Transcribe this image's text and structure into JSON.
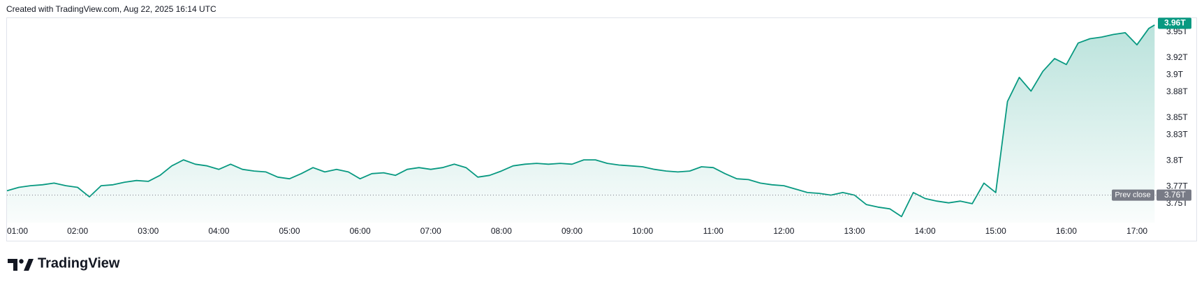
{
  "header": "Created with TradingView.com, Aug 22, 2025 16:14 UTC",
  "brand": "TradingView",
  "chart_data": {
    "type": "area",
    "color": "#089981",
    "x": [
      "01:00",
      "01:10",
      "01:20",
      "01:30",
      "01:40",
      "01:50",
      "02:00",
      "02:10",
      "02:20",
      "02:30",
      "02:40",
      "02:50",
      "03:00",
      "03:10",
      "03:20",
      "03:30",
      "03:40",
      "03:50",
      "04:00",
      "04:10",
      "04:20",
      "04:30",
      "04:40",
      "04:50",
      "05:00",
      "05:10",
      "05:20",
      "05:30",
      "05:40",
      "05:50",
      "06:00",
      "06:10",
      "06:20",
      "06:30",
      "06:40",
      "06:50",
      "07:00",
      "07:10",
      "07:20",
      "07:30",
      "07:40",
      "07:50",
      "08:00",
      "08:10",
      "08:20",
      "08:30",
      "08:40",
      "08:50",
      "09:00",
      "09:10",
      "09:20",
      "09:30",
      "09:40",
      "09:50",
      "10:00",
      "10:10",
      "10:20",
      "10:30",
      "10:40",
      "10:50",
      "11:00",
      "11:10",
      "11:20",
      "11:30",
      "11:40",
      "11:50",
      "12:00",
      "12:10",
      "12:20",
      "12:30",
      "12:40",
      "12:50",
      "13:00",
      "13:10",
      "13:20",
      "13:30",
      "13:40",
      "13:50",
      "14:00",
      "14:10",
      "14:20",
      "14:30",
      "14:40",
      "14:50",
      "15:00",
      "15:10",
      "15:20",
      "15:30",
      "15:40",
      "15:50",
      "16:00",
      "16:10",
      "16:20",
      "16:30",
      "16:40",
      "16:50",
      "17:00",
      "17:10",
      "17:15"
    ],
    "values": [
      3.765,
      3.769,
      3.771,
      3.772,
      3.774,
      3.771,
      3.769,
      3.758,
      3.771,
      3.772,
      3.775,
      3.777,
      3.776,
      3.783,
      3.794,
      3.801,
      3.796,
      3.794,
      3.79,
      3.796,
      3.79,
      3.788,
      3.787,
      3.781,
      3.779,
      3.785,
      3.792,
      3.787,
      3.79,
      3.787,
      3.779,
      3.785,
      3.786,
      3.783,
      3.79,
      3.792,
      3.79,
      3.792,
      3.796,
      3.792,
      3.781,
      3.783,
      3.788,
      3.794,
      3.796,
      3.797,
      3.796,
      3.797,
      3.796,
      3.801,
      3.801,
      3.797,
      3.795,
      3.794,
      3.793,
      3.79,
      3.788,
      3.787,
      3.788,
      3.793,
      3.792,
      3.785,
      3.779,
      3.778,
      3.774,
      3.772,
      3.771,
      3.767,
      3.763,
      3.762,
      3.76,
      3.763,
      3.76,
      3.749,
      3.746,
      3.744,
      3.735,
      3.763,
      3.756,
      3.753,
      3.751,
      3.753,
      3.75,
      3.774,
      3.763,
      3.869,
      3.897,
      3.881,
      3.904,
      3.919,
      3.912,
      3.937,
      3.942,
      3.944,
      3.947,
      3.949,
      3.935,
      3.954,
      3.958
    ],
    "xlim": [
      "01:00",
      "17:16"
    ],
    "xticks": [
      "01:00",
      "02:00",
      "03:00",
      "04:00",
      "05:00",
      "06:00",
      "07:00",
      "08:00",
      "09:00",
      "10:00",
      "11:00",
      "12:00",
      "13:00",
      "14:00",
      "15:00",
      "16:00",
      "17:00"
    ],
    "ylim": [
      3.728,
      3.966
    ],
    "yticks": [
      {
        "value": 3.75,
        "label": "3.75T"
      },
      {
        "value": 3.77,
        "label": "3.77T"
      },
      {
        "value": 3.8,
        "label": "3.8T"
      },
      {
        "value": 3.83,
        "label": "3.83T"
      },
      {
        "value": 3.85,
        "label": "3.85T"
      },
      {
        "value": 3.88,
        "label": "3.88T"
      },
      {
        "value": 3.9,
        "label": "3.9T"
      },
      {
        "value": 3.92,
        "label": "3.92T"
      },
      {
        "value": 3.95,
        "label": "3.95T"
      }
    ],
    "grid": false,
    "prev_close": {
      "label": "Prev close",
      "value": 3.76,
      "value_label": "3.76T",
      "color": "#787b86"
    },
    "last_price": {
      "value": 3.96,
      "value_label": "3.96T",
      "color": "#089981"
    }
  }
}
